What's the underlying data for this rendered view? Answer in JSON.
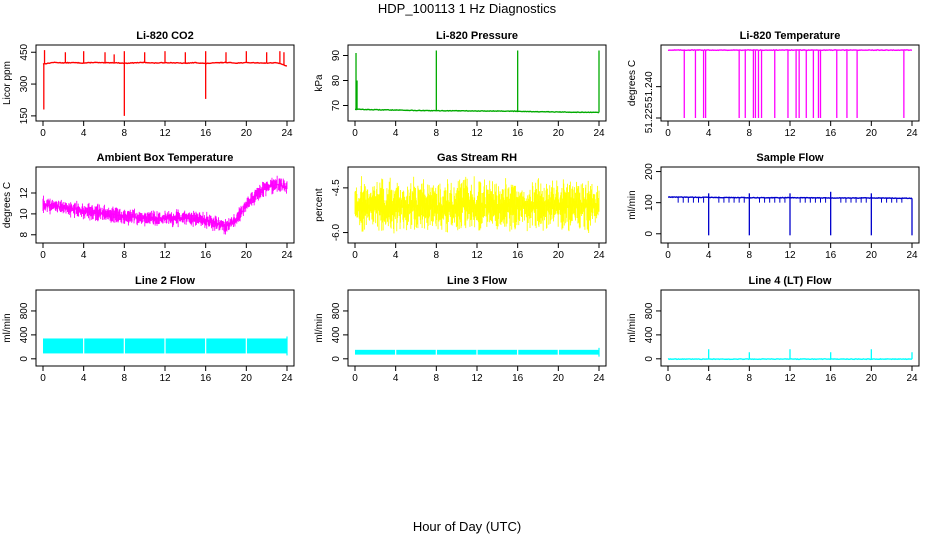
{
  "figure": {
    "title": "HDP_100113  1 Hz Diagnostics",
    "xlabel": "Hour of Day (UTC)"
  },
  "chart_data": [
    {
      "type": "line",
      "title": "Li-820 CO2",
      "ylabel": "Licor ppm",
      "color": "#ff0000",
      "xlim": [
        0,
        24
      ],
      "ylim": [
        140,
        470
      ],
      "xticks": [
        0,
        4,
        8,
        12,
        16,
        20,
        24
      ],
      "yticks": [
        150,
        300,
        450
      ],
      "style": "spiky",
      "series": [
        {
          "x": [
            0,
            0.5,
            1,
            2,
            3,
            4,
            5,
            6,
            7,
            8,
            9,
            10,
            11,
            12,
            13,
            14,
            15,
            16,
            17,
            18,
            19,
            20,
            21,
            22,
            23,
            24
          ],
          "values": [
            395,
            398,
            402,
            400,
            401,
            399,
            402,
            400,
            401,
            398,
            400,
            402,
            399,
            401,
            400,
            398,
            401,
            397,
            400,
            402,
            399,
            401,
            400,
            399,
            401,
            385
          ]
        }
      ],
      "spikes": [
        {
          "x": 0.08,
          "y": 180
        },
        {
          "x": 0.15,
          "y": 460
        },
        {
          "x": 2.2,
          "y": 450
        },
        {
          "x": 4.0,
          "y": 455
        },
        {
          "x": 6.1,
          "y": 450
        },
        {
          "x": 7.0,
          "y": 440
        },
        {
          "x": 8.0,
          "y": 455
        },
        {
          "x": 8.0,
          "y": 150
        },
        {
          "x": 10.0,
          "y": 450
        },
        {
          "x": 12.0,
          "y": 455
        },
        {
          "x": 14.0,
          "y": 450
        },
        {
          "x": 16.0,
          "y": 455
        },
        {
          "x": 16.0,
          "y": 230
        },
        {
          "x": 18.0,
          "y": 450
        },
        {
          "x": 20.0,
          "y": 455
        },
        {
          "x": 22.0,
          "y": 450
        },
        {
          "x": 23.3,
          "y": 455
        },
        {
          "x": 23.7,
          "y": 450
        }
      ]
    },
    {
      "type": "line",
      "title": "Li-820 Pressure",
      "ylabel": "kPa",
      "color": "#00aa00",
      "xlim": [
        0,
        24
      ],
      "ylim": [
        65,
        93
      ],
      "xticks": [
        0,
        4,
        8,
        12,
        16,
        20,
        24
      ],
      "yticks": [
        70,
        80,
        90
      ],
      "style": "spiky",
      "series": [
        {
          "x": [
            0,
            2,
            4,
            6,
            8,
            10,
            12,
            14,
            16,
            18,
            20,
            22,
            24
          ],
          "values": [
            68.5,
            68.3,
            68.2,
            68.0,
            67.9,
            67.9,
            67.8,
            67.8,
            67.7,
            67.5,
            67.4,
            67.3,
            67.2
          ]
        }
      ],
      "spikes": [
        {
          "x": 0.1,
          "y": 91
        },
        {
          "x": 0.2,
          "y": 80
        },
        {
          "x": 8.0,
          "y": 92
        },
        {
          "x": 16.0,
          "y": 92
        },
        {
          "x": 24.0,
          "y": 92
        }
      ]
    },
    {
      "type": "line",
      "title": "Li-820 Temperature",
      "ylabel": "degrees C",
      "color": "#ff00ff",
      "xlim": [
        0,
        24
      ],
      "ylim": [
        51.225,
        51.2585
      ],
      "xticks": [
        0,
        4,
        8,
        12,
        16,
        20,
        24
      ],
      "yticks": [
        51.225,
        51.24
      ],
      "yticklabels": [
        "51.225",
        "51.240"
      ],
      "style": "drops",
      "series": [
        {
          "x": [
            0,
            24
          ],
          "values": [
            51.2575,
            51.2575
          ]
        }
      ],
      "drops": [
        1.6,
        2.7,
        3.5,
        3.7,
        7.0,
        7.6,
        8.4,
        8.6,
        8.9,
        9.2,
        10.5,
        11.8,
        12.6,
        12.9,
        13.6,
        14.3,
        14.8,
        15.0,
        16.6,
        17.6,
        18.6,
        23.2
      ],
      "drop_to": 51.225
    },
    {
      "type": "line",
      "title": "Ambient Box Temperature",
      "ylabel": "degrees C",
      "color": "#ff00ff",
      "xlim": [
        0,
        24
      ],
      "ylim": [
        7.5,
        14.2
      ],
      "xticks": [
        0,
        4,
        8,
        12,
        16,
        20,
        24
      ],
      "yticks": [
        8,
        10,
        12
      ],
      "style": "band",
      "band_amp": 0.9,
      "series": [
        {
          "x": [
            0,
            2,
            4,
            6,
            8,
            10,
            12,
            14,
            16,
            17,
            18,
            19,
            20,
            21,
            22,
            23,
            24
          ],
          "values": [
            10.9,
            10.6,
            10.3,
            10.0,
            9.8,
            9.6,
            9.6,
            9.6,
            9.4,
            9.1,
            8.8,
            9.5,
            10.8,
            11.9,
            12.6,
            12.8,
            12.6
          ]
        }
      ]
    },
    {
      "type": "line",
      "title": "Gas Stream RH",
      "ylabel": "percent",
      "color": "#ffff00",
      "xlim": [
        0,
        24
      ],
      "ylim": [
        -6.25,
        -3.9
      ],
      "xticks": [
        0,
        4,
        8,
        12,
        16,
        20,
        24
      ],
      "yticks": [
        -6.0,
        -4.5
      ],
      "yticklabels": [
        "-6.0",
        "-4.5"
      ],
      "style": "band",
      "band_amp": 1.0,
      "series": [
        {
          "x": [
            0,
            24
          ],
          "values": [
            -5.1,
            -5.1
          ]
        }
      ]
    },
    {
      "type": "line",
      "title": "Sample Flow",
      "ylabel": "ml/min",
      "color": "#0000cc",
      "xlim": [
        0,
        24
      ],
      "ylim": [
        -20,
        205
      ],
      "xticks": [
        0,
        4,
        8,
        12,
        16,
        20,
        24
      ],
      "yticks": [
        0,
        100,
        200
      ],
      "style": "spiky",
      "series": [
        {
          "x": [
            0,
            4,
            8,
            12,
            16,
            20,
            24
          ],
          "values": [
            118,
            117,
            116,
            116,
            115,
            115,
            114
          ]
        }
      ],
      "spikes": [
        {
          "x": 4.0,
          "y": -5
        },
        {
          "x": 8.0,
          "y": -5
        },
        {
          "x": 12.0,
          "y": -5
        },
        {
          "x": 16.0,
          "y": -5
        },
        {
          "x": 20.0,
          "y": -5
        },
        {
          "x": 24.0,
          "y": -5
        },
        {
          "x": 4.0,
          "y": 130
        },
        {
          "x": 8.0,
          "y": 130
        },
        {
          "x": 12.0,
          "y": 130
        },
        {
          "x": 16.0,
          "y": 135
        },
        {
          "x": 20.0,
          "y": 130
        }
      ],
      "dips": [
        1.0,
        1.5,
        2.0,
        2.5,
        3.0,
        3.5,
        5.0,
        5.5,
        6.0,
        6.5,
        7.0,
        7.5,
        9.0,
        9.5,
        10.0,
        10.5,
        11.0,
        11.5,
        13.0,
        13.5,
        14.0,
        14.5,
        15.0,
        15.5,
        17.0,
        17.5,
        18.0,
        18.5,
        19.0,
        19.5,
        21.0,
        21.5,
        22.0,
        22.5,
        23.0
      ],
      "dip_to": 100
    },
    {
      "type": "area",
      "title": "Line 2 Flow",
      "ylabel": "ml/min",
      "color": "#00ffff",
      "xlim": [
        0,
        24
      ],
      "ylim": [
        -70,
        1100
      ],
      "xticks": [
        0,
        4,
        8,
        12,
        16,
        20,
        24
      ],
      "yticks": [
        0,
        400,
        800
      ],
      "style": "block",
      "series": [
        {
          "x": [
            0,
            24
          ],
          "low": 90,
          "high": 340
        }
      ],
      "gaps": [
        4,
        8,
        12,
        16,
        20,
        24
      ]
    },
    {
      "type": "area",
      "title": "Line 3 Flow",
      "ylabel": "ml/min",
      "color": "#00ffff",
      "xlim": [
        0,
        24
      ],
      "ylim": [
        -70,
        1100
      ],
      "xticks": [
        0,
        4,
        8,
        12,
        16,
        20,
        24
      ],
      "yticks": [
        0,
        400,
        800
      ],
      "style": "block",
      "series": [
        {
          "x": [
            0,
            24
          ],
          "low": 70,
          "high": 150
        }
      ],
      "gaps": [
        4,
        8,
        12,
        16,
        20,
        24
      ]
    },
    {
      "type": "line",
      "title": "Line 4 (LT) Flow",
      "ylabel": "ml/min",
      "color": "#00ffff",
      "xlim": [
        0,
        24
      ],
      "ylim": [
        -70,
        1100
      ],
      "xticks": [
        0,
        4,
        8,
        12,
        16,
        20,
        24
      ],
      "yticks": [
        0,
        400,
        800
      ],
      "style": "spiky",
      "series": [
        {
          "x": [
            0,
            24
          ],
          "values": [
            -5,
            -5
          ]
        }
      ],
      "spikes": [
        {
          "x": 4.0,
          "y": 160
        },
        {
          "x": 8.0,
          "y": 110
        },
        {
          "x": 12.0,
          "y": 160
        },
        {
          "x": 16.0,
          "y": 110
        },
        {
          "x": 20.0,
          "y": 160
        },
        {
          "x": 24.0,
          "y": 110
        }
      ]
    }
  ]
}
